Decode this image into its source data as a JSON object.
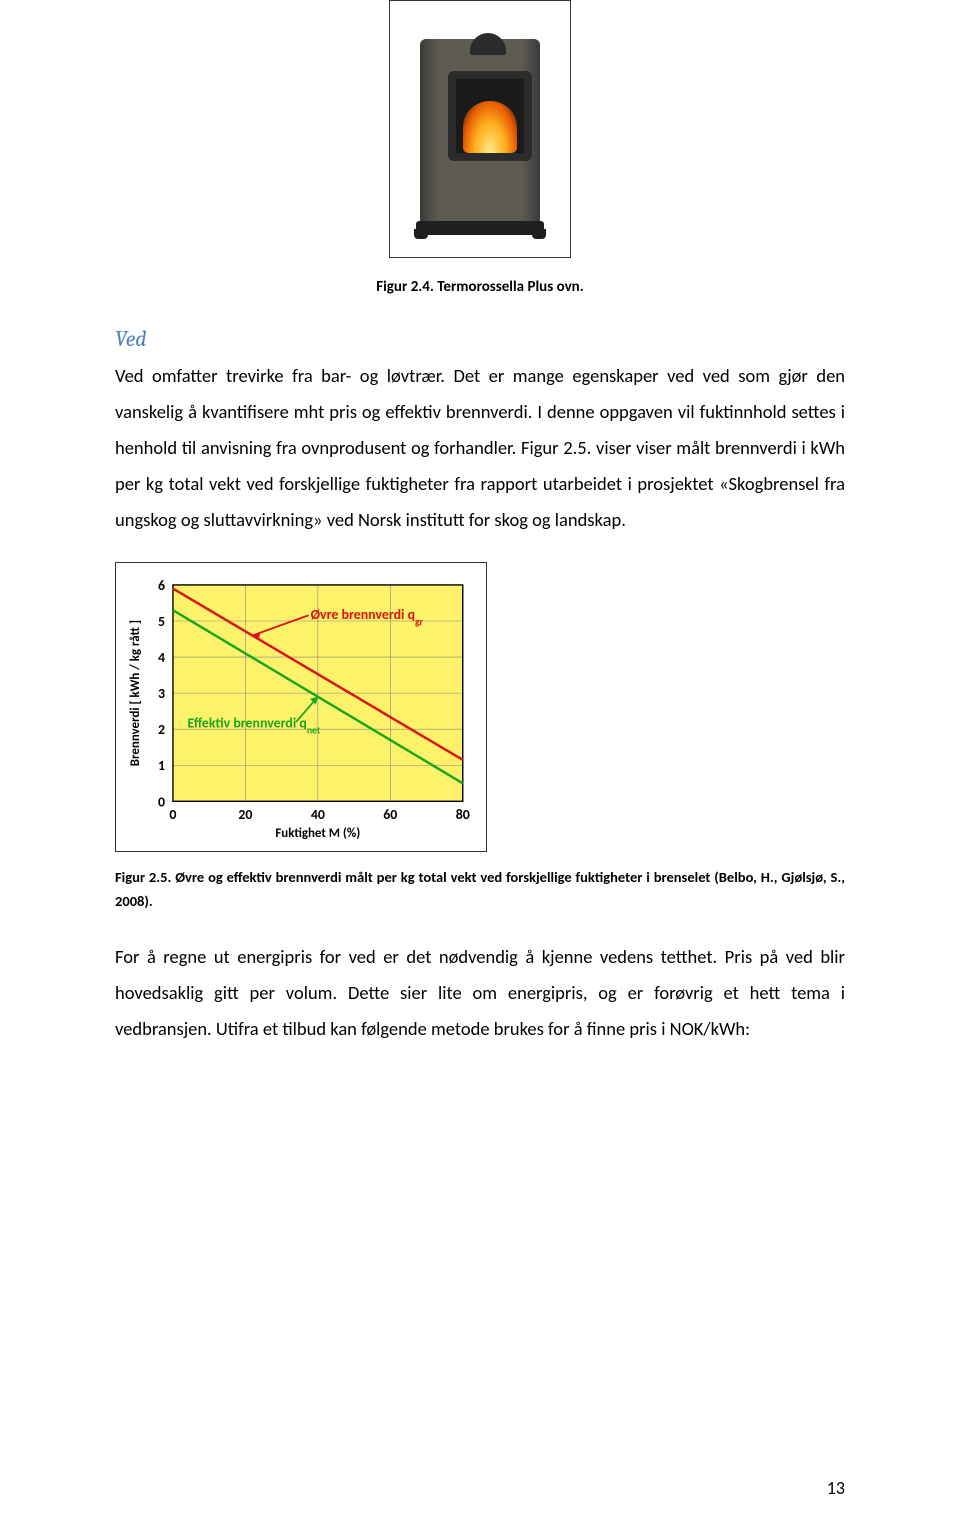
{
  "figure1": {
    "caption": "Figur 2.4. Termorossella Plus ovn."
  },
  "subheading": "Ved",
  "paragraph1": "Ved omfatter trevirke fra bar- og løvtrær. Det er mange egenskaper ved ved som gjør den vanskelig å kvantifisere mht pris og effektiv brennverdi. I denne oppgaven vil fuktinnhold settes i henhold til anvisning fra ovnprodusent og forhandler. Figur 2.5. viser viser målt brennverdi i kWh per kg total vekt ved forskjellige fuktigheter fra rapport utarbeidet i prosjektet «Skogbrensel fra ungskog og sluttavvirkning» ved Norsk institutt for skog og landskap.",
  "chart": {
    "type": "line",
    "background_color": "#fff26b",
    "grid_color": "#888888",
    "x": {
      "label": "Fuktighet M (%)",
      "min": 0,
      "max": 80,
      "ticks": [
        0,
        20,
        40,
        60,
        80
      ]
    },
    "y": {
      "label": "Brennverdi [ kWh / kg rått ]",
      "min": 0,
      "max": 6,
      "ticks": [
        0,
        1,
        2,
        3,
        4,
        5,
        6
      ]
    },
    "series": [
      {
        "name": "upper",
        "label": "Øvre brennverdi q",
        "label_sub": "gr",
        "color": "#d91414",
        "line_width": 2.5,
        "points": [
          [
            0,
            5.9
          ],
          [
            80,
            1.15
          ]
        ]
      },
      {
        "name": "lower",
        "label": "Effektiv brennverdi q",
        "label_sub": "net",
        "color": "#17a81a",
        "line_width": 2.5,
        "points": [
          [
            0,
            5.3
          ],
          [
            80,
            0.5
          ]
        ]
      }
    ],
    "label_font_color": "#d91414",
    "label2_font_color": "#17a81a",
    "axis_text_color": "#000000",
    "axis_fontsize": 13,
    "tick_fontsize": 14,
    "annotation_fontsize": 14
  },
  "figure2": {
    "caption": "Figur 2.5. Øvre og effektiv brennverdi målt per kg total vekt ved forskjellige fuktigheter i brenselet (Belbo, H., Gjølsjø, S., 2008)."
  },
  "paragraph2": "For å regne ut energipris for ved er det nødvendig å kjenne vedens tetthet. Pris på ved blir hovedsaklig gitt per volum. Dette sier lite om energipris, og er forøvrig et hett tema i vedbransjen. Utifra et tilbud kan følgende metode brukes for å finne pris i NOK/kWh:",
  "page_number": "13"
}
